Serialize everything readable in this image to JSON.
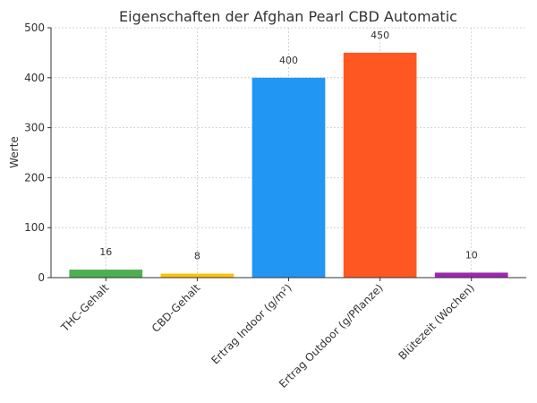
{
  "chart_data": {
    "type": "bar",
    "title": "Eigenschaften der Afghan Pearl CBD Automatic",
    "xlabel": "",
    "ylabel": "Werte",
    "ylim": [
      0,
      500
    ],
    "yticks": [
      0,
      100,
      200,
      300,
      400,
      500
    ],
    "grid": true,
    "categories": [
      "THC-Gehalt",
      "CBD-Gehalt",
      "Ertrag Indoor (g/m²)",
      "Ertrag Outdoor (g/Pflanze)",
      "Blütezeit (Wochen)"
    ],
    "values": [
      16,
      8,
      400,
      450,
      10
    ],
    "value_labels": [
      "16",
      "8",
      "400",
      "450",
      "10"
    ],
    "colors": [
      "#4caf50",
      "#ffc107",
      "#2196f3",
      "#ff5722",
      "#9c27b0"
    ]
  }
}
